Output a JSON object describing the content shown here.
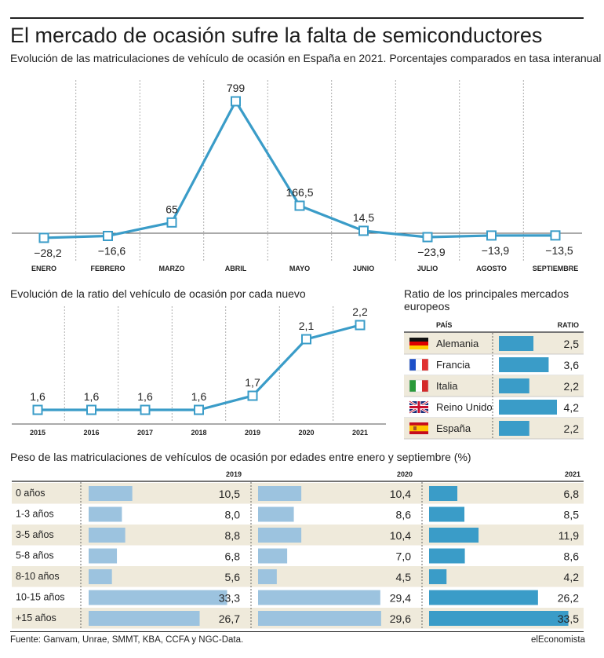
{
  "header": {
    "title": "El mercado de ocasión sufre la falta de semiconductores",
    "subtitle": "Evolución de las matriculaciones de vehículo de ocasión en España en 2021. Porcentajes comparados en tasa interanual"
  },
  "colors": {
    "line": "#3a9cc8",
    "bar_dark": "#3a9cc8",
    "bar_light": "#9cc3df",
    "row_band": "#efeadb"
  },
  "chart_data": [
    {
      "type": "line",
      "title": "Evolución de las matriculaciones de vehículo de ocasión en España en 2021. Porcentajes comparados en tasa interanual",
      "categories": [
        "ENERO",
        "FEBRERO",
        "MARZO",
        "ABRIL",
        "MAYO",
        "JUNIO",
        "JULIO",
        "AGOSTO",
        "SEPTIEMBRE"
      ],
      "values": [
        -28.2,
        -16.6,
        65,
        799,
        166.5,
        14.5,
        -23.9,
        -13.9,
        -13.5
      ],
      "labels": [
        "−28,2",
        "−16,6",
        "65",
        "799",
        "166,5",
        "14,5",
        "−23,9",
        "−13,9",
        "−13,5"
      ],
      "ylim": [
        -60,
        840
      ]
    },
    {
      "type": "line",
      "title": "Evolución de la ratio del vehículo de ocasión por cada nuevo",
      "categories": [
        "2015",
        "2016",
        "2017",
        "2018",
        "2019",
        "2020",
        "2021"
      ],
      "values": [
        1.6,
        1.6,
        1.6,
        1.6,
        1.7,
        2.1,
        2.2
      ],
      "labels": [
        "1,6",
        "1,6",
        "1,6",
        "1,6",
        "1,7",
        "2,1",
        "2,2"
      ],
      "ylim": [
        1.4,
        2.3
      ]
    },
    {
      "type": "bar",
      "title": "Ratio de los principales mercados europeos",
      "col_country": "PAÍS",
      "col_ratio": "RATIO",
      "categories": [
        "Alemania",
        "Francia",
        "Italia",
        "Reino Unido",
        "España"
      ],
      "flags": [
        "flag-germany-icon",
        "flag-france-icon",
        "flag-italy-icon",
        "flag-uk-icon",
        "flag-spain-icon"
      ],
      "values": [
        2.5,
        3.6,
        2.2,
        4.2,
        2.2
      ],
      "labels": [
        "2,5",
        "3,6",
        "2,2",
        "4,2",
        "2,2"
      ]
    },
    {
      "type": "bar",
      "title": "Peso de las matriculaciones de vehículos de ocasión por edades entre enero y septiembre (%)",
      "categories": [
        "0 años",
        "1-3 años",
        "3-5 años",
        "5-8 años",
        "8-10 años",
        "10-15 años",
        "+15 años"
      ],
      "series": [
        {
          "name": "2019",
          "values": [
            10.5,
            8.0,
            8.8,
            6.8,
            5.6,
            33.3,
            26.7
          ],
          "labels": [
            "10,5",
            "8,0",
            "8,8",
            "6,8",
            "5,6",
            "33,3",
            "26,7"
          ]
        },
        {
          "name": "2020",
          "values": [
            10.4,
            8.6,
            10.4,
            7.0,
            4.5,
            29.4,
            29.6
          ],
          "labels": [
            "10,4",
            "8,6",
            "10,4",
            "7,0",
            "4,5",
            "29,4",
            "29,6"
          ]
        },
        {
          "name": "2021",
          "values": [
            6.8,
            8.5,
            11.9,
            8.6,
            4.2,
            26.2,
            33.5
          ],
          "labels": [
            "6,8",
            "8,5",
            "11,9",
            "8,6",
            "4,2",
            "26,2",
            "33,5"
          ]
        }
      ]
    }
  ],
  "footer": {
    "source": "Fuente: Ganvam, Unrae, SMMT, KBA, CCFA y NGC-Data.",
    "brand": "elEconomista"
  }
}
